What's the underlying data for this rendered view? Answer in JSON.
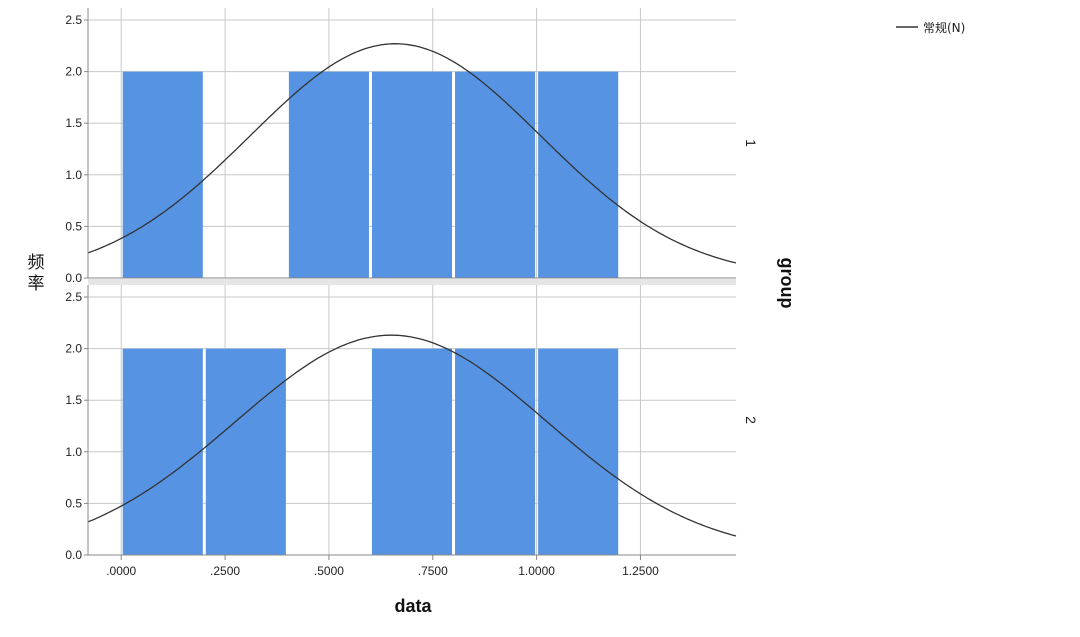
{
  "chart_data": {
    "type": "bar",
    "title": "",
    "xlabel": "data",
    "ylabel": "频率",
    "facet_label": "group",
    "legend": {
      "label": "常规(N)",
      "placement": "top-right"
    },
    "xlim": [
      -0.08,
      1.48
    ],
    "ylim": [
      0,
      2.5
    ],
    "x_ticks": [
      0,
      0.25,
      0.5,
      0.75,
      1.0,
      1.25
    ],
    "x_tick_labels": [
      ".0000",
      ".2500",
      ".5000",
      ".7500",
      "1.0000",
      "1.2500"
    ],
    "y_ticks": [
      0,
      0.5,
      1.0,
      1.5,
      2.0,
      2.5
    ],
    "y_tick_labels": [
      "0.0",
      "0.5",
      "1.0",
      "1.5",
      "2.0",
      "2.5"
    ],
    "grid": true,
    "colors": {
      "bar": "#5694E3",
      "curve": "#333333",
      "grid": "#c8c8c8",
      "separator": "#e6e6e6"
    },
    "panels": [
      {
        "label": "1",
        "bins": [
          {
            "x0": 0.0,
            "x1": 0.2,
            "count": 2
          },
          {
            "x0": 0.4,
            "x1": 0.6,
            "count": 2
          },
          {
            "x0": 0.6,
            "x1": 0.8,
            "count": 2
          },
          {
            "x0": 0.8,
            "x1": 1.0,
            "count": 2
          },
          {
            "x0": 1.0,
            "x1": 1.2,
            "count": 2
          }
        ],
        "normal": {
          "mean": 0.66,
          "peak": 2.27,
          "sd": 0.35
        }
      },
      {
        "label": "2",
        "bins": [
          {
            "x0": 0.0,
            "x1": 0.2,
            "count": 2
          },
          {
            "x0": 0.2,
            "x1": 0.4,
            "count": 2
          },
          {
            "x0": 0.6,
            "x1": 0.8,
            "count": 2
          },
          {
            "x0": 0.8,
            "x1": 1.0,
            "count": 2
          },
          {
            "x0": 1.0,
            "x1": 1.2,
            "count": 2
          }
        ],
        "normal": {
          "mean": 0.65,
          "peak": 2.13,
          "sd": 0.375
        }
      }
    ]
  }
}
